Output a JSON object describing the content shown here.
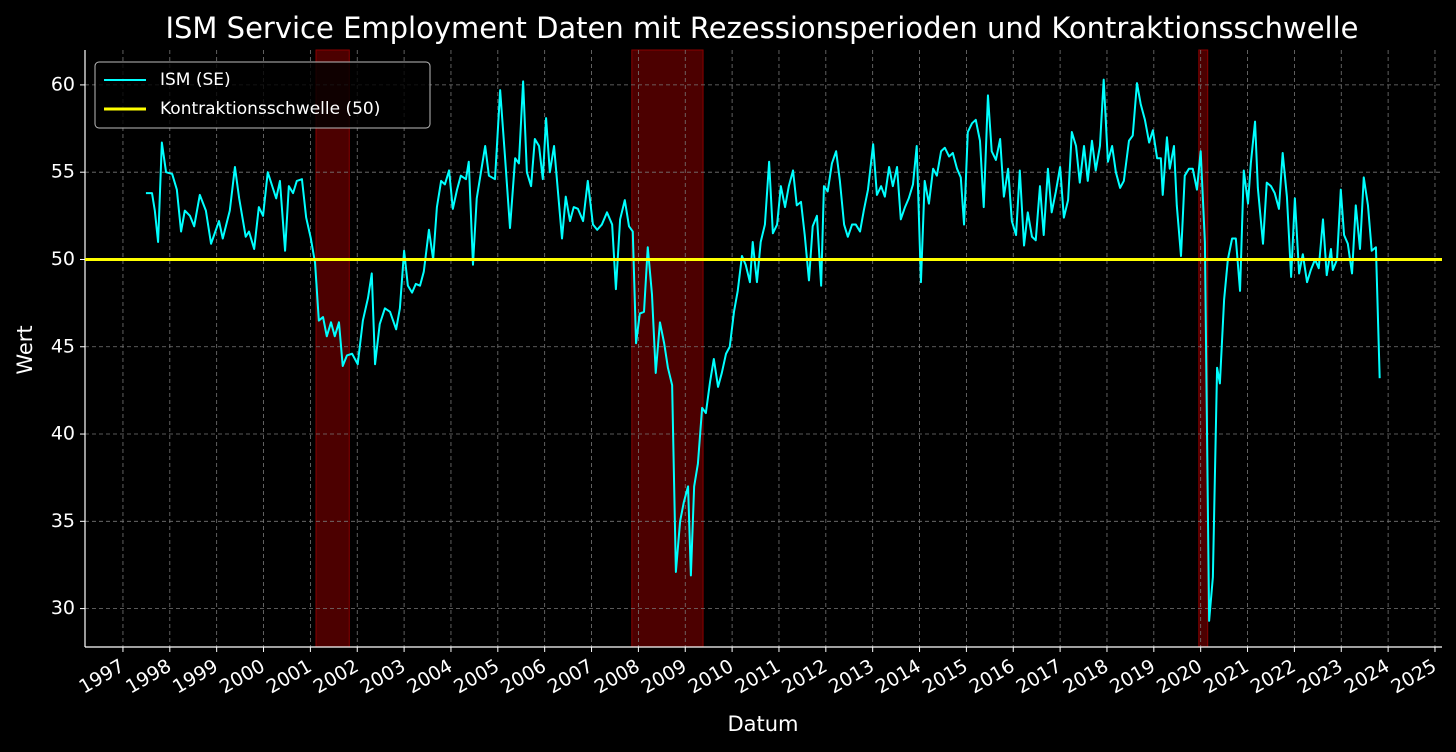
{
  "chart_data": {
    "type": "line",
    "title": "ISM Service Employment Daten mit Rezessionsperioden und Kontraktionsschwelle",
    "x_label": "Datum",
    "y_label": "Wert",
    "xlim": [
      1996.19,
      2025.15
    ],
    "ylim": [
      27.8,
      62.0
    ],
    "xticks": [
      1997,
      1998,
      1999,
      2000,
      2001,
      2002,
      2003,
      2004,
      2005,
      2006,
      2007,
      2008,
      2009,
      2010,
      2011,
      2012,
      2013,
      2014,
      2015,
      2016,
      2017,
      2018,
      2019,
      2020,
      2021,
      2022,
      2023,
      2024,
      2025
    ],
    "yticks": [
      30,
      35,
      40,
      45,
      50,
      55,
      60
    ],
    "grid": true,
    "legend": "upper-left",
    "recession_color": "#8b0000",
    "recessions": [
      [
        2001.12,
        2001.83
      ],
      [
        2007.86,
        2009.38
      ],
      [
        2019.96,
        2020.15
      ]
    ],
    "threshold": {
      "name": "Kontraktionsschwelle (50)",
      "value": 50,
      "color": "#ffff00"
    },
    "series": [
      {
        "name": "ISM (SE)",
        "color": "#00ffff",
        "x": [
          1997.49,
          1997.62,
          1997.68,
          1997.75,
          1997.83,
          1997.92,
          1998.05,
          1998.15,
          1998.24,
          1998.32,
          1998.43,
          1998.52,
          1998.64,
          1998.77,
          1998.88,
          1999.05,
          1999.13,
          1999.28,
          1999.39,
          1999.48,
          1999.62,
          1999.69,
          1999.8,
          1999.9,
          1999.99,
          2000.09,
          2000.27,
          2000.35,
          2000.46,
          2000.54,
          2000.63,
          2000.71,
          2000.82,
          2000.91,
          2001.01,
          2001.1,
          2001.18,
          2001.27,
          2001.35,
          2001.44,
          2001.52,
          2001.61,
          2001.69,
          2001.78,
          2001.89,
          2002.01,
          2002.12,
          2002.23,
          2002.31,
          2002.38,
          2002.48,
          2002.59,
          2002.7,
          2002.83,
          2002.91,
          2003.0,
          2003.08,
          2003.17,
          2003.25,
          2003.34,
          2003.42,
          2003.53,
          2003.62,
          2003.7,
          2003.79,
          2003.87,
          2003.96,
          2004.04,
          2004.13,
          2004.21,
          2004.32,
          2004.38,
          2004.47,
          2004.55,
          2004.64,
          2004.73,
          2004.81,
          2004.94,
          2005.05,
          2005.15,
          2005.26,
          2005.37,
          2005.45,
          2005.54,
          2005.62,
          2005.71,
          2005.79,
          2005.88,
          2005.96,
          2006.03,
          2006.11,
          2006.2,
          2006.28,
          2006.37,
          2006.45,
          2006.54,
          2006.62,
          2006.71,
          2006.82,
          2006.92,
          2007.03,
          2007.12,
          2007.22,
          2007.33,
          2007.44,
          2007.52,
          2007.61,
          2007.71,
          2007.8,
          2007.88,
          2007.95,
          2008.03,
          2008.12,
          2008.2,
          2008.29,
          2008.37,
          2008.46,
          2008.55,
          2008.63,
          2008.72,
          2008.8,
          2008.89,
          2008.97,
          2009.06,
          2009.12,
          2009.19,
          2009.27,
          2009.36,
          2009.44,
          2009.53,
          2009.61,
          2009.7,
          2009.78,
          2009.87,
          2009.95,
          2010.04,
          2010.12,
          2010.21,
          2010.29,
          2010.38,
          2010.44,
          2010.53,
          2010.61,
          2010.7,
          2010.79,
          2010.87,
          2010.96,
          2011.04,
          2011.13,
          2011.21,
          2011.3,
          2011.38,
          2011.47,
          2011.55,
          2011.64,
          2011.72,
          2011.81,
          2011.9,
          2011.96,
          2012.04,
          2012.13,
          2012.22,
          2012.3,
          2012.39,
          2012.47,
          2012.56,
          2012.64,
          2012.73,
          2012.81,
          2012.9,
          2013.01,
          2013.09,
          2013.18,
          2013.26,
          2013.35,
          2013.43,
          2013.52,
          2013.6,
          2013.69,
          2013.77,
          2013.86,
          2013.94,
          2014.03,
          2014.11,
          2014.2,
          2014.29,
          2014.37,
          2014.46,
          2014.54,
          2014.63,
          2014.71,
          2014.8,
          2014.88,
          2014.95,
          2015.03,
          2015.12,
          2015.2,
          2015.29,
          2015.37,
          2015.46,
          2015.54,
          2015.63,
          2015.72,
          2015.8,
          2015.89,
          2015.97,
          2016.06,
          2016.14,
          2016.23,
          2016.31,
          2016.4,
          2016.48,
          2016.57,
          2016.65,
          2016.74,
          2016.82,
          2016.91,
          2017.0,
          2017.08,
          2017.17,
          2017.25,
          2017.34,
          2017.42,
          2017.51,
          2017.59,
          2017.68,
          2017.76,
          2017.85,
          2017.93,
          2018.02,
          2018.11,
          2018.19,
          2018.28,
          2018.36,
          2018.47,
          2018.55,
          2018.64,
          2018.72,
          2018.81,
          2018.9,
          2018.98,
          2019.07,
          2019.15,
          2019.19,
          2019.28,
          2019.34,
          2019.43,
          2019.49,
          2019.58,
          2019.66,
          2019.75,
          2019.83,
          2019.92,
          2020.0,
          2020.09,
          2020.18,
          2020.26,
          2020.35,
          2020.41,
          2020.5,
          2020.58,
          2020.67,
          2020.75,
          2020.84,
          2020.92,
          2021.01,
          2021.07,
          2021.16,
          2021.22,
          2021.33,
          2021.41,
          2021.5,
          2021.58,
          2021.67,
          2021.75,
          2021.84,
          2021.93,
          2022.01,
          2022.1,
          2022.18,
          2022.27,
          2022.35,
          2022.44,
          2022.52,
          2022.61,
          2022.69,
          2022.78,
          2022.82,
          2022.91,
          2022.99,
          2023.06,
          2023.14,
          2023.23,
          2023.31,
          2023.4,
          2023.48,
          2023.57,
          2023.65,
          2023.74,
          2023.82
        ],
        "values": [
          53.8,
          53.8,
          52.8,
          51.0,
          56.7,
          55.0,
          54.9,
          54.0,
          51.6,
          52.8,
          52.5,
          51.9,
          53.7,
          52.8,
          50.9,
          52.2,
          51.2,
          52.8,
          55.3,
          53.5,
          51.3,
          51.6,
          50.6,
          53.0,
          52.5,
          55.0,
          53.5,
          54.5,
          50.5,
          54.2,
          53.8,
          54.5,
          54.6,
          52.4,
          51.2,
          49.8,
          46.5,
          46.7,
          45.6,
          46.4,
          45.6,
          46.4,
          43.9,
          44.5,
          44.6,
          44.0,
          46.5,
          47.8,
          49.2,
          44.0,
          46.3,
          47.2,
          47.0,
          46.0,
          47.2,
          50.5,
          48.5,
          48.1,
          48.6,
          48.5,
          49.3,
          51.7,
          50.0,
          53.0,
          54.5,
          54.3,
          55.1,
          52.9,
          54.0,
          54.8,
          54.6,
          55.6,
          49.7,
          53.5,
          55.0,
          56.5,
          54.8,
          54.6,
          59.7,
          56.0,
          51.8,
          55.8,
          55.5,
          60.2,
          55.0,
          54.2,
          56.9,
          56.5,
          54.6,
          58.1,
          55.0,
          56.5,
          54.0,
          51.2,
          53.6,
          52.2,
          53.0,
          52.9,
          52.2,
          54.5,
          52.0,
          51.7,
          52.0,
          52.7,
          52.0,
          48.3,
          52.3,
          53.4,
          51.9,
          51.6,
          45.2,
          46.9,
          47.0,
          50.7,
          48.0,
          43.5,
          46.4,
          45.2,
          43.8,
          42.8,
          32.1,
          35.0,
          36.1,
          37.0,
          31.9,
          37.0,
          38.3,
          41.5,
          41.2,
          43.0,
          44.3,
          42.7,
          43.5,
          44.6,
          45.0,
          47.0,
          48.2,
          50.2,
          49.7,
          48.7,
          51.0,
          48.7,
          51.0,
          52.0,
          55.6,
          51.5,
          52.0,
          54.2,
          53.0,
          54.2,
          55.1,
          53.1,
          53.3,
          51.4,
          48.8,
          51.9,
          52.5,
          48.5,
          54.2,
          53.9,
          55.5,
          56.2,
          54.5,
          52.0,
          51.3,
          52.0,
          52.0,
          51.6,
          52.8,
          54.0,
          56.6,
          53.7,
          54.2,
          53.6,
          55.3,
          54.2,
          55.3,
          52.3,
          53.0,
          53.5,
          54.3,
          56.5,
          48.7,
          54.5,
          53.2,
          55.2,
          54.8,
          56.2,
          56.4,
          55.9,
          56.1,
          55.2,
          54.7,
          52.0,
          57.3,
          57.8,
          58.0,
          56.8,
          53.0,
          59.4,
          56.2,
          55.7,
          56.9,
          53.6,
          55.2,
          52.2,
          51.4,
          55.1,
          50.8,
          52.7,
          51.3,
          51.1,
          54.2,
          51.4,
          55.2,
          52.7,
          53.9,
          55.3,
          52.4,
          53.4,
          57.3,
          56.5,
          54.4,
          56.5,
          54.5,
          56.8,
          55.1,
          56.5,
          60.3,
          55.6,
          56.5,
          55.0,
          54.1,
          54.5,
          56.8,
          57.1,
          60.1,
          58.9,
          58.0,
          56.7,
          57.4,
          55.8,
          55.8,
          53.7,
          57.0,
          55.2,
          56.5,
          53.1,
          50.2,
          54.8,
          55.2,
          55.2,
          54.0,
          56.2,
          51.0,
          29.3,
          31.8,
          43.8,
          42.9,
          47.7,
          50.0,
          51.2,
          51.2,
          48.2,
          55.1,
          53.2,
          55.5,
          57.9,
          54.1,
          50.9,
          54.4,
          54.2,
          53.8,
          52.9,
          56.1,
          53.6,
          49.0,
          53.5,
          49.2,
          50.3,
          48.7,
          49.4,
          50.0,
          49.5,
          52.3,
          49.1,
          50.6,
          49.4,
          50.0,
          54.0,
          51.4,
          50.9,
          49.2,
          53.1,
          50.6,
          54.7,
          53.1,
          50.5,
          50.7,
          43.2
        ]
      }
    ]
  }
}
